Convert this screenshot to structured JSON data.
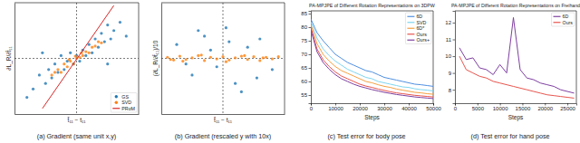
{
  "chart_data": [
    {
      "type": "scatter",
      "caption": "(a) Gradient (same unit x,y)",
      "x_label": "t̂₁₁ − t₁₁",
      "y_label": "∂L_R/∂t̂₁₁",
      "xlim": [
        -1,
        1
      ],
      "ylim": [
        -1,
        1
      ],
      "xticks": [
        0
      ],
      "yticks": [
        0
      ],
      "grid": true,
      "tick_labels": false,
      "legend": "lower right",
      "series": [
        {
          "name": "GS",
          "color": "#1f77b4",
          "marker": "circle",
          "x": [
            -0.7,
            -0.6,
            -0.5,
            -0.45,
            -0.4,
            -0.35,
            -0.3,
            -0.25,
            -0.2,
            -0.15,
            -0.1,
            -0.05,
            0,
            0.05,
            0.1,
            0.15,
            0.2,
            0.25,
            0.3,
            0.35,
            0.4,
            0.45,
            0.5,
            0.55,
            0.6,
            0.7,
            -0.8,
            0.8,
            -0.55,
            0.5
          ],
          "values": [
            -0.55,
            -0.3,
            -0.45,
            -0.2,
            -0.35,
            -0.1,
            -0.25,
            0.05,
            -0.2,
            -0.05,
            0.1,
            -0.1,
            0.05,
            -0.05,
            0.15,
            0.05,
            0.25,
            0.1,
            0.35,
            0.2,
            0.45,
            0.3,
            0.6,
            0.35,
            0.5,
            0.65,
            -0.7,
            0.4,
            0.1,
            -0.1
          ]
        },
        {
          "name": "SVD",
          "color": "#ff7f0e",
          "marker": "circle",
          "x": [
            -0.4,
            -0.3,
            -0.25,
            -0.2,
            -0.15,
            -0.1,
            -0.05,
            0,
            0.05,
            0.1,
            0.15,
            0.2,
            0.25,
            0.3,
            0.35,
            -0.35,
            0.4,
            -0.12,
            0.08,
            -0.02
          ],
          "values": [
            -0.3,
            -0.2,
            -0.25,
            -0.1,
            -0.15,
            -0.05,
            -0.1,
            0,
            0.02,
            0.05,
            0.12,
            0.1,
            0.2,
            0.22,
            0.3,
            -0.25,
            0.28,
            -0.02,
            0.1,
            0.04
          ]
        },
        {
          "name": "PRoM",
          "color": "#d62728",
          "type": "line",
          "line_style": "solid",
          "x": [
            -0.55,
            0.6
          ],
          "values": [
            -0.9,
            0.95
          ]
        }
      ]
    },
    {
      "type": "scatter",
      "caption": "(b) Gradient (rescaled y with 10x)",
      "x_label": "t̂₁₁ − t₁₁",
      "y_label": "(∂L_R/∂t̂₁₁)/10",
      "xlim": [
        -1,
        1
      ],
      "ylim": [
        -1,
        1
      ],
      "xticks": [
        0
      ],
      "yticks": [
        0
      ],
      "grid": true,
      "tick_labels": false,
      "series": [
        {
          "color": "#ff7f0e",
          "marker": "circle",
          "x": [
            -0.9,
            -0.8,
            -0.7,
            -0.6,
            -0.5,
            -0.4,
            -0.3,
            -0.2,
            -0.1,
            0,
            0.1,
            0.2,
            0.3,
            0.4,
            0.5,
            0.6,
            0.7,
            0.8,
            0.9,
            -0.65,
            -0.35,
            0.05,
            0.35,
            0.65,
            -0.85
          ],
          "values": [
            0.02,
            -0.03,
            0.04,
            -0.02,
            0.01,
            0.05,
            -0.04,
            0.02,
            -0.01,
            0.03,
            -0.03,
            0.01,
            0.04,
            -0.02,
            0.03,
            -0.04,
            0.02,
            -0.01,
            0.03,
            -0.05,
            0.06,
            -0.06,
            0.05,
            0.01,
            -0.02
          ]
        },
        {
          "color": "#1f77b4",
          "marker": "circle",
          "x": [
            -0.75,
            -0.5,
            -0.3,
            -0.1,
            0.05,
            0.2,
            0.4,
            0.6,
            0.8,
            -0.6,
            0.3,
            -0.2,
            0.1,
            0.55,
            -0.4
          ],
          "values": [
            0.25,
            -0.3,
            0.4,
            -0.15,
            0.55,
            -0.45,
            0.2,
            0.35,
            -0.2,
            -0.1,
            -0.6,
            0.15,
            0.3,
            -0.35,
            0.5
          ]
        }
      ]
    },
    {
      "type": "line",
      "title": "PA-MPJPE of Different Rotation Representations on 3DPW",
      "caption": "(c) Test error for body pose",
      "x_label": "Steps",
      "xlim": [
        0,
        50000
      ],
      "ylim": [
        52,
        86
      ],
      "xticks": [
        0,
        10000,
        20000,
        30000,
        40000,
        50000
      ],
      "yticks": [
        55,
        60,
        65,
        70,
        75,
        80,
        85
      ],
      "grid": false,
      "legend": "upper right",
      "x": [
        0,
        2500,
        5000,
        7500,
        10000,
        12500,
        15000,
        17500,
        20000,
        22500,
        25000,
        27500,
        30000,
        32500,
        35000,
        37500,
        40000,
        42500,
        45000,
        47500,
        50000
      ],
      "series": [
        {
          "name": "6D",
          "color": "#4f8fe0",
          "values": [
            83,
            78,
            75,
            72.5,
            70,
            68.5,
            67,
            66,
            65,
            64,
            63.5,
            62.5,
            61.5,
            61,
            60.5,
            60,
            59.5,
            59,
            58.8,
            58.5,
            58.2
          ]
        },
        {
          "name": "SVD",
          "color": "#7fd6f0",
          "values": [
            82,
            76,
            72,
            69.5,
            67.5,
            66,
            64.5,
            63.5,
            62.5,
            61.5,
            61,
            60,
            59.5,
            59,
            58.5,
            58,
            57.8,
            57.3,
            57,
            56.8,
            56.5
          ]
        },
        {
          "name": "6D*",
          "color": "#f5a142",
          "values": [
            81,
            74,
            70,
            67.5,
            65.5,
            64,
            63,
            62,
            61,
            60,
            59.5,
            58.8,
            58.2,
            57.8,
            57.2,
            56.8,
            56.4,
            56,
            55.8,
            55.5,
            55.3
          ]
        },
        {
          "name": "Ours",
          "color": "#e8554e",
          "values": [
            80,
            72,
            68,
            65.5,
            63.5,
            62,
            61,
            60,
            59,
            58.3,
            57.8,
            57.2,
            56.7,
            56.2,
            55.8,
            55.5,
            55.2,
            54.9,
            54.7,
            54.5,
            54.3
          ]
        },
        {
          "name": "Ours+",
          "color": "#7e3fa0",
          "values": [
            79,
            71,
            67,
            64.5,
            62.5,
            61,
            60,
            59,
            58.2,
            57.6,
            57,
            56.5,
            56,
            55.6,
            55.2,
            54.9,
            54.6,
            54.3,
            54.1,
            53.9,
            53.7
          ]
        }
      ]
    },
    {
      "type": "line",
      "title": "PA-MPJPE of Different Rotation Representations on Freihand",
      "caption": "(d) Test error for hand pose",
      "x_label": "Steps",
      "xlim": [
        0,
        27000
      ],
      "ylim": [
        7.2,
        12.7
      ],
      "xticks": [
        0,
        5000,
        10000,
        15000,
        20000,
        25000
      ],
      "yticks": [
        8,
        9,
        10,
        11,
        12
      ],
      "grid": false,
      "legend": "upper right",
      "x": [
        1000,
        2500,
        4000,
        5500,
        7000,
        8500,
        10000,
        11500,
        13000,
        14500,
        16000,
        17500,
        19000,
        20500,
        22000,
        23500,
        25000,
        26500
      ],
      "series": [
        {
          "name": "6D",
          "color": "#7e3fa0",
          "values": [
            10.5,
            9.8,
            9.9,
            9.3,
            9.2,
            8.9,
            9.5,
            9.0,
            12.3,
            9.2,
            8.7,
            8.6,
            8.4,
            8.3,
            8.2,
            8.0,
            7.9,
            7.8
          ]
        },
        {
          "name": "Ours",
          "color": "#e8554e",
          "values": [
            10.0,
            9.2,
            9.0,
            8.8,
            8.7,
            8.5,
            8.4,
            8.3,
            8.2,
            8.1,
            8.0,
            7.9,
            7.8,
            7.7,
            7.65,
            7.6,
            7.55,
            7.5
          ]
        }
      ]
    }
  ]
}
